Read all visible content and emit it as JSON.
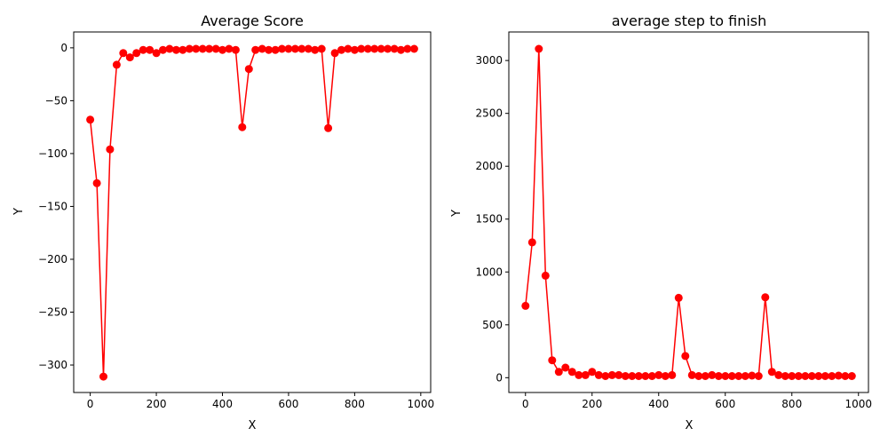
{
  "chart_data": [
    {
      "type": "line",
      "title": "Average Score",
      "xlabel": "X",
      "ylabel": "Y",
      "xlim": [
        -50,
        1030
      ],
      "ylim": [
        -326,
        15
      ],
      "xticks": [
        0,
        200,
        400,
        600,
        800,
        1000
      ],
      "yticks": [
        0,
        -50,
        -100,
        -150,
        -200,
        -250,
        -300
      ],
      "xtick_labels": [
        "0",
        "200",
        "400",
        "600",
        "800",
        "1000"
      ],
      "ytick_labels": [
        "0",
        "−50",
        "−100",
        "−150",
        "−200",
        "−250",
        "−300"
      ],
      "grid": false,
      "color": "#ff0000",
      "marker": "circle",
      "x": [
        0,
        20,
        40,
        60,
        80,
        100,
        120,
        140,
        160,
        180,
        200,
        220,
        240,
        260,
        280,
        300,
        320,
        340,
        360,
        380,
        400,
        420,
        440,
        460,
        480,
        500,
        520,
        540,
        560,
        580,
        600,
        620,
        640,
        660,
        680,
        700,
        720,
        740,
        760,
        780,
        800,
        820,
        840,
        860,
        880,
        900,
        920,
        940,
        960,
        980
      ],
      "y": [
        -68,
        -128,
        -311,
        -96,
        -16,
        -5,
        -9,
        -5,
        -2,
        -2,
        -5,
        -2,
        -1,
        -2,
        -2,
        -1,
        -1,
        -1,
        -1,
        -1,
        -2,
        -1,
        -2,
        -75,
        -20,
        -2,
        -1,
        -2,
        -2,
        -1,
        -1,
        -1,
        -1,
        -1,
        -2,
        -1,
        -76,
        -5,
        -2,
        -1,
        -2,
        -1,
        -1,
        -1,
        -1,
        -1,
        -1,
        -2,
        -1,
        -1
      ]
    },
    {
      "type": "line",
      "title": "average step to finish",
      "xlabel": "X",
      "ylabel": "Y",
      "xlim": [
        -50,
        1030
      ],
      "ylim": [
        -140,
        3270
      ],
      "xticks": [
        0,
        200,
        400,
        600,
        800,
        1000
      ],
      "yticks": [
        0,
        500,
        1000,
        1500,
        2000,
        2500,
        3000
      ],
      "xtick_labels": [
        "0",
        "200",
        "400",
        "600",
        "800",
        "1000"
      ],
      "ytick_labels": [
        "0",
        "500",
        "1000",
        "1500",
        "2000",
        "2500",
        "3000"
      ],
      "grid": false,
      "color": "#ff0000",
      "marker": "circle",
      "x": [
        0,
        20,
        40,
        60,
        80,
        100,
        120,
        140,
        160,
        180,
        200,
        220,
        240,
        260,
        280,
        300,
        320,
        340,
        360,
        380,
        400,
        420,
        440,
        460,
        480,
        500,
        520,
        540,
        560,
        580,
        600,
        620,
        640,
        660,
        680,
        700,
        720,
        740,
        760,
        780,
        800,
        820,
        840,
        860,
        880,
        900,
        920,
        940,
        960,
        980
      ],
      "y": [
        680,
        1280,
        3110,
        965,
        165,
        55,
        95,
        55,
        25,
        25,
        55,
        25,
        15,
        25,
        25,
        15,
        15,
        15,
        15,
        15,
        25,
        15,
        25,
        755,
        205,
        25,
        15,
        15,
        25,
        15,
        15,
        15,
        15,
        15,
        20,
        15,
        760,
        55,
        25,
        15,
        15,
        15,
        15,
        15,
        15,
        15,
        15,
        20,
        15,
        15
      ]
    }
  ]
}
